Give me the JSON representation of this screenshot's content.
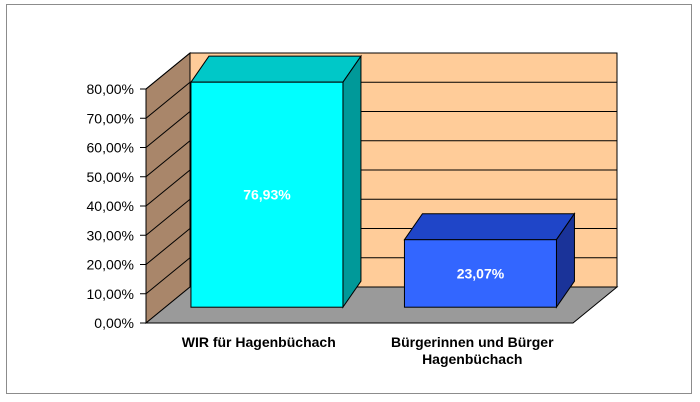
{
  "chart_data": {
    "type": "bar",
    "style": "3d-column",
    "categories": [
      "WIR für Hagenbüchach",
      "Bürgerinnen und Bürger Hagenbüchach"
    ],
    "category_lines": [
      [
        "WIR für Hagenbüchach"
      ],
      [
        "Bürgerinnen und Bürger",
        "Hagenbüchach"
      ]
    ],
    "values": [
      76.93,
      23.07
    ],
    "data_labels": [
      "76,93%",
      "23,07%"
    ],
    "ylim": [
      0,
      80
    ],
    "y_ticks": [
      "0,00%",
      "10,00%",
      "20,00%",
      "30,00%",
      "40,00%",
      "50,00%",
      "60,00%",
      "70,00%",
      "80,00%"
    ],
    "grid": true,
    "legend": "none",
    "colors": {
      "wall": "#ffcc99",
      "side_wall": "#a9866a",
      "floor": "#9a9a9a",
      "bars": [
        {
          "front": "#00ffff",
          "top": "#00c8c8",
          "side": "#009999"
        },
        {
          "front": "#3366ff",
          "top": "#1f45c8",
          "side": "#1a3399"
        }
      ]
    }
  }
}
